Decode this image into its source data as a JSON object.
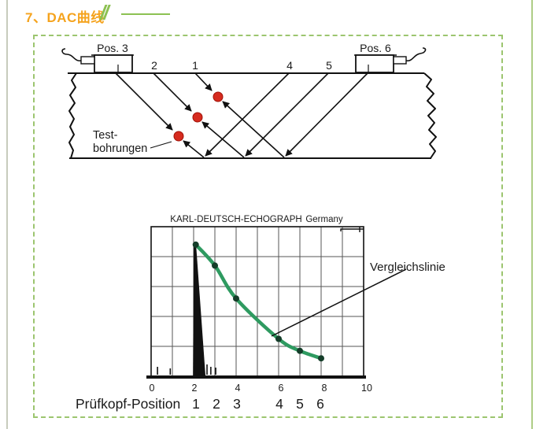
{
  "page": {
    "title": "7、DAC曲线",
    "slashes": "//",
    "accent_orange": "#f5a31d",
    "accent_green": "#8cc152"
  },
  "block_diagram": {
    "probe_left_label": "Pos. 3",
    "probe_right_label": "Pos. 6",
    "surface_marks": [
      "2",
      "1",
      "4",
      "5"
    ],
    "holes_label_line1": "Test-",
    "holes_label_line2": "bohrungen",
    "hole_color": "#d62b1f"
  },
  "chart": {
    "instrument": "KARL-DEUTSCH-ECHOGRAPH",
    "country": "Germany",
    "annotation": "Vergleichslinie",
    "xlabel": "Prüfkopf-Position"
  },
  "chart_data": {
    "type": "line",
    "title": "KARL-DEUTSCH-ECHOGRAPH Germany",
    "annotation": "Vergleichslinie",
    "xlabel": "Prüfkopf-Position",
    "x_axis": {
      "min": 0,
      "max": 10,
      "tick_labels": [
        "0",
        "2",
        "4",
        "6",
        "8",
        "10"
      ]
    },
    "grid": {
      "cols": 10,
      "rows": 5,
      "visible": true
    },
    "curve_color": "#2e9a60",
    "series": [
      {
        "name": "Vergleichslinie (DAC reference line)",
        "points": [
          {
            "x": 2.1,
            "amplitude_pct": 88,
            "probe_position": 1
          },
          {
            "x": 3.0,
            "amplitude_pct": 74,
            "probe_position": 2
          },
          {
            "x": 4.0,
            "amplitude_pct": 52,
            "probe_position": 3
          },
          {
            "x": 6.0,
            "amplitude_pct": 25,
            "probe_position": 4
          },
          {
            "x": 7.0,
            "amplitude_pct": 17,
            "probe_position": 5
          },
          {
            "x": 8.0,
            "amplitude_pct": 12,
            "probe_position": 6
          }
        ]
      }
    ],
    "echo_spike": {
      "x": 2.08,
      "amplitude_pct": 88
    },
    "baseline_noise": [
      {
        "x": 0.3,
        "h": 10
      },
      {
        "x": 0.9,
        "h": 8
      },
      {
        "x": 2.63,
        "h": 13
      },
      {
        "x": 2.81,
        "h": 10
      },
      {
        "x": 3.04,
        "h": 9
      }
    ]
  }
}
